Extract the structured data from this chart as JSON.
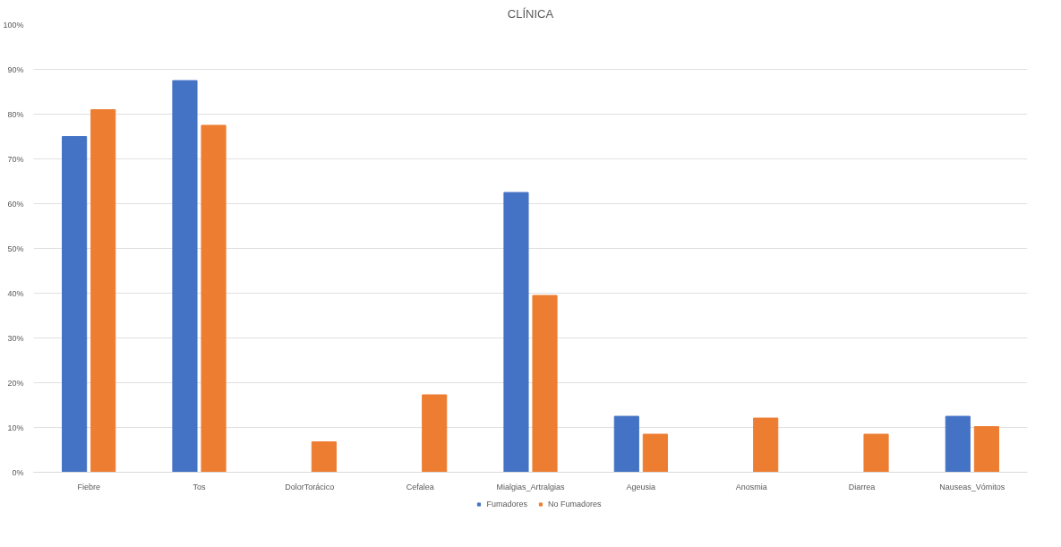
{
  "chart_data": {
    "type": "bar",
    "title": "CLÍNICA",
    "categories": [
      "Fiebre",
      "Tos",
      "DolorTorácico",
      "Cefalea",
      "Mialgias_Artralgias",
      "Ageusia",
      "Anosmia",
      "Diarrea",
      "Nauseas_Vómitos"
    ],
    "series": [
      {
        "name": "Fumadores",
        "color": "#4472c4",
        "values": [
          75,
          87.5,
          0,
          0,
          62.5,
          12.5,
          0,
          0,
          12.5
        ]
      },
      {
        "name": "No Fumadores",
        "color": "#ed7d31",
        "values": [
          81,
          77.5,
          6.8,
          17.3,
          39.5,
          8.5,
          12.1,
          8.5,
          10.2
        ]
      }
    ],
    "ylim": [
      0,
      100
    ],
    "yticks": [
      {
        "value": 0,
        "label": "0%"
      },
      {
        "value": 10,
        "label": "10%"
      },
      {
        "value": 20,
        "label": "20%"
      },
      {
        "value": 30,
        "label": "30%"
      },
      {
        "value": 40,
        "label": "40%"
      },
      {
        "value": 50,
        "label": "50%"
      },
      {
        "value": 60,
        "label": "60%"
      },
      {
        "value": 70,
        "label": "70%"
      },
      {
        "value": 80,
        "label": "80%"
      },
      {
        "value": 90,
        "label": "90%"
      },
      {
        "value": 100,
        "label": "100%"
      }
    ],
    "grid": "y",
    "legend": "bottom"
  }
}
